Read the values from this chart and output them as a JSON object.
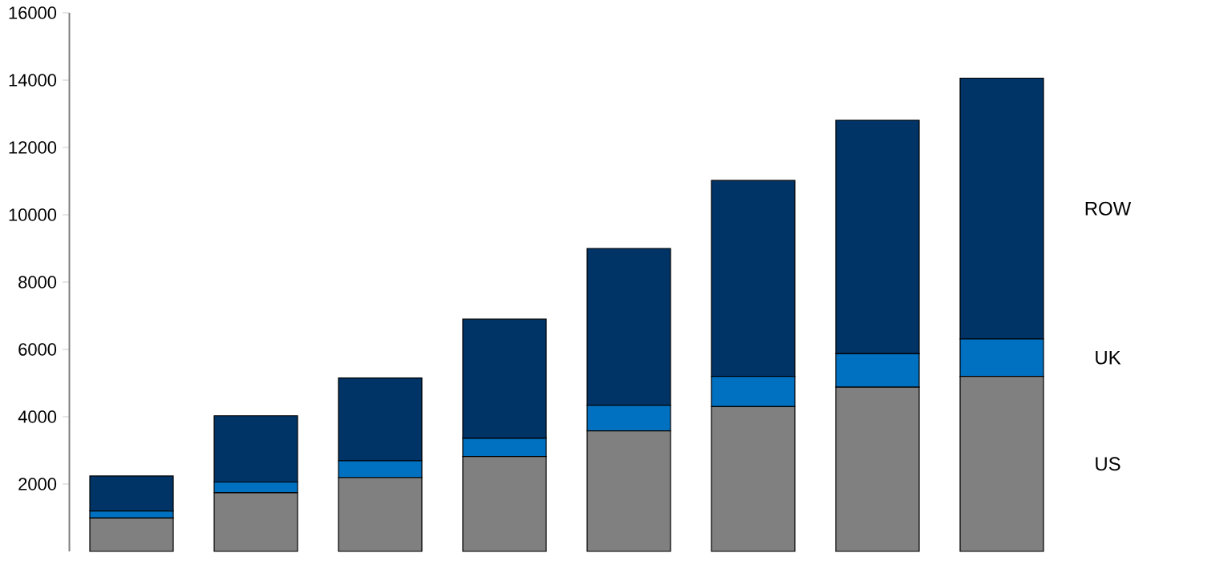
{
  "chart_data": {
    "type": "bar",
    "stacked": true,
    "categories": [
      null,
      null,
      null,
      null,
      null,
      null,
      null,
      null
    ],
    "series": [
      {
        "name": "US",
        "color": "#808080",
        "values": [
          990,
          1740,
          2190,
          2820,
          3580,
          4300,
          4880,
          5200
        ]
      },
      {
        "name": "UK",
        "color": "#0070c0",
        "values": [
          210,
          320,
          500,
          540,
          760,
          900,
          990,
          1110
        ]
      },
      {
        "name": "ROW",
        "color": "#003366",
        "values": [
          1040,
          1970,
          2460,
          3540,
          4660,
          5820,
          6940,
          7750
        ]
      }
    ],
    "ylim": [
      0,
      16000
    ],
    "yticks": [
      2000,
      4000,
      6000,
      8000,
      10000,
      12000,
      14000,
      16000
    ]
  }
}
